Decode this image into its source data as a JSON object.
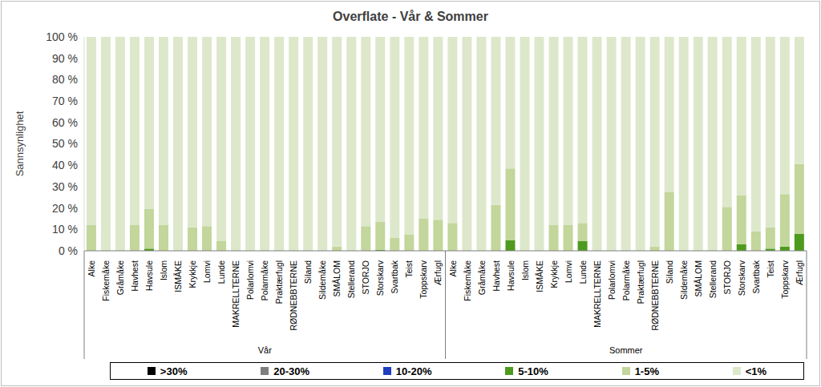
{
  "chart_data": {
    "type": "bar",
    "stacked": true,
    "title": "Overflate - Vår & Sommer",
    "y_label": "Sannsynlighet",
    "grid": false,
    "legend": "bottom",
    "ylim": [
      0,
      100
    ],
    "yticks": [
      {
        "value": 0,
        "label": "0 %"
      },
      {
        "value": 10,
        "label": "10 %"
      },
      {
        "value": 20,
        "label": "20 %"
      },
      {
        "value": 30,
        "label": "30 %"
      },
      {
        "value": 40,
        "label": "40 %"
      },
      {
        "value": 50,
        "label": "50 %"
      },
      {
        "value": 60,
        "label": "60 %"
      },
      {
        "value": 70,
        "label": "70 %"
      },
      {
        "value": 80,
        "label": "80 %"
      },
      {
        "value": 90,
        "label": "90 %"
      },
      {
        "value": 100,
        "label": "100 %"
      }
    ],
    "groups": [
      {
        "name": "Vår",
        "size": 25
      },
      {
        "name": "Sommer",
        "size": 25
      }
    ],
    "categories": [
      "Alke",
      "Fiskemåke",
      "Gråmåke",
      "Havhest",
      "Havsule",
      "Islom",
      "ISMÅKE",
      "Krykkje",
      "Lomvi",
      "Lunde",
      "MAKRELLTERNE",
      "Polarlomvi",
      "Polarmåke",
      "Praktærfugl",
      "RØDNEBBTERNE",
      "Siland",
      "Sildemåke",
      "SMÅLOM",
      "Stellerand",
      "STORJO",
      "Storskarv",
      "Svartbak",
      "Teist",
      "Toppskarv",
      "Ærfugl",
      "Alke",
      "Fiskemåke",
      "Gråmåke",
      "Havhest",
      "Havsule",
      "Islom",
      "ISMÅKE",
      "Krykkje",
      "Lomvi",
      "Lunde",
      "MAKRELLTERNE",
      "Polarlomvi",
      "Polarmåke",
      "Praktærfugl",
      "RØDNEBBTERNE",
      "Siland",
      "Sildemåke",
      "SMÅLOM",
      "Stellerand",
      "STORJO",
      "Storskarv",
      "Svartbak",
      "Teist",
      "Toppskarv",
      "Ærfugl"
    ],
    "series": [
      {
        "name": ">30%",
        "color": "#000000",
        "values": [
          0,
          0,
          0,
          0,
          0,
          0,
          0,
          0,
          0,
          0,
          0,
          0,
          0,
          0,
          0,
          0,
          0,
          0,
          0,
          0,
          0,
          0,
          0,
          0,
          0,
          0,
          0,
          0,
          0,
          0,
          0,
          0,
          0,
          0,
          0,
          0,
          0,
          0,
          0,
          0,
          0,
          0,
          0,
          0,
          0,
          0,
          0,
          0,
          0,
          0
        ]
      },
      {
        "name": "20-30%",
        "color": "#7f7f7f",
        "values": [
          0,
          0,
          0,
          0,
          0,
          0,
          0,
          0,
          0,
          0,
          0,
          0,
          0,
          0,
          0,
          0,
          0,
          0,
          0,
          0,
          0,
          0,
          0,
          0,
          0,
          0,
          0,
          0,
          0,
          0,
          0,
          0,
          0,
          0,
          0,
          0,
          0,
          0,
          0,
          0,
          0,
          0,
          0,
          0,
          0,
          0,
          0,
          0,
          0,
          0
        ]
      },
      {
        "name": "10-20%",
        "color": "#1f3fbf",
        "values": [
          0,
          0,
          0,
          0,
          0,
          0,
          0,
          0,
          0,
          0,
          0,
          0,
          0,
          0,
          0,
          0,
          0,
          0,
          0,
          0,
          0,
          0,
          0,
          0,
          0,
          0,
          0,
          0,
          0,
          0,
          0,
          0,
          0,
          0,
          0,
          0,
          0,
          0,
          0,
          0,
          0,
          0,
          0,
          0,
          0,
          0,
          0,
          0,
          0,
          0
        ]
      },
      {
        "name": "5-10%",
        "color": "#4e9a1e",
        "values": [
          0,
          0,
          0,
          0,
          1,
          0,
          0,
          0,
          0,
          0,
          0,
          0,
          0,
          0,
          0,
          0,
          0,
          0,
          0,
          0,
          0.5,
          0,
          0,
          0,
          0,
          0,
          0,
          0,
          0,
          5,
          0,
          0,
          0,
          0,
          4.5,
          0,
          0,
          0,
          0,
          0,
          0,
          0,
          0,
          0,
          0,
          3,
          0,
          1,
          2,
          8
        ]
      },
      {
        "name": "1-5%",
        "color": "#c3d69b",
        "values": [
          12,
          0,
          0,
          12,
          18.5,
          12,
          0,
          11,
          11.5,
          4.5,
          0,
          0,
          0,
          0,
          0,
          0,
          0,
          2,
          0,
          11.5,
          13,
          6,
          7.5,
          15,
          14.5,
          13,
          0,
          0,
          21.5,
          33.5,
          0,
          0,
          12,
          12,
          8.5,
          0,
          0,
          0,
          0,
          2,
          27.5,
          0,
          0,
          0,
          20.5,
          23,
          9,
          10,
          24.5,
          32.5
        ]
      },
      {
        "name": "<1%",
        "color": "#dde8cb",
        "values": [
          88,
          100,
          100,
          88,
          80.5,
          88,
          100,
          89,
          88.5,
          95.5,
          100,
          100,
          100,
          100,
          100,
          100,
          100,
          98,
          100,
          88.5,
          86.5,
          94,
          92.5,
          85,
          85.5,
          87,
          100,
          100,
          78.5,
          61.5,
          100,
          100,
          88,
          88,
          87,
          100,
          100,
          100,
          100,
          98,
          72.5,
          100,
          100,
          100,
          79.5,
          74,
          91,
          89,
          73.5,
          59.5
        ]
      }
    ]
  }
}
